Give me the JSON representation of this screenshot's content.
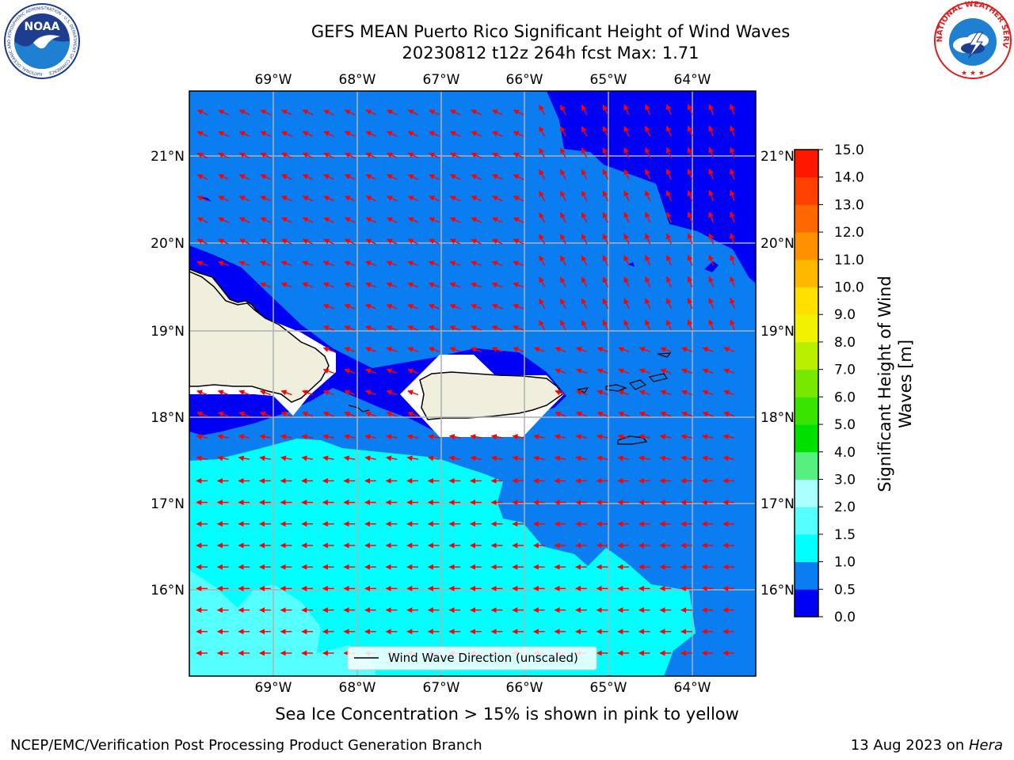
{
  "title": {
    "line1": "GEFS MEAN Puerto Rico Significant Height of Wind Waves",
    "line2": "20230812 t12z 264h fcst   Max: 1.71"
  },
  "logos": {
    "noaa_text": "NOAA",
    "noaa_ring_text": "NATIONAL OCEANIC AND ATMOSPHERIC ADMINISTRATION · U.S. DEPARTMENT OF COMMERCE",
    "nws_ring_text": "NATIONAL WEATHER SERVICE"
  },
  "map": {
    "lon_labels": [
      "69°W",
      "68°W",
      "67°W",
      "66°W",
      "65°W",
      "64°W"
    ],
    "lat_labels": [
      "21°N",
      "20°N",
      "19°N",
      "18°N",
      "17°N",
      "16°N"
    ],
    "legend_label": "Wind Wave Direction (unscaled)",
    "colors": {
      "band_0_0_5": "#0000f5",
      "band_0_5_1_0": "#0a7ef0",
      "band_1_0_1_5": "#00ffff",
      "band_1_5_2_0": "#55ffff",
      "land": "#f0eedc",
      "arrow": "#ff0000",
      "grid": "#b0b0b0"
    }
  },
  "colorbar": {
    "title_line1": "Significant Height of Wind",
    "title_line2": "Waves [m]",
    "ticks": [
      "0.0",
      "0.5",
      "1.0",
      "1.5",
      "2.0",
      "3.0",
      "4.0",
      "5.0",
      "6.0",
      "7.0",
      "8.0",
      "9.0",
      "10.0",
      "11.0",
      "12.0",
      "13.0",
      "14.0",
      "15.0"
    ],
    "colors": [
      "#0000f5",
      "#0a7ef0",
      "#00ffff",
      "#55ffff",
      "#aaffff",
      "#55f080",
      "#00e000",
      "#38e400",
      "#78e800",
      "#b8ee00",
      "#f0f000",
      "#ffe000",
      "#ffb800",
      "#ff9000",
      "#ff6800",
      "#ff4000",
      "#ff1800"
    ]
  },
  "caption": "Sea Ice Concentration > 15% is shown in pink to yellow",
  "footer": {
    "left": "NCEP/EMC/Verification Post Processing Product Generation Branch",
    "date": "13 Aug 2023 on ",
    "host": "Hera"
  }
}
